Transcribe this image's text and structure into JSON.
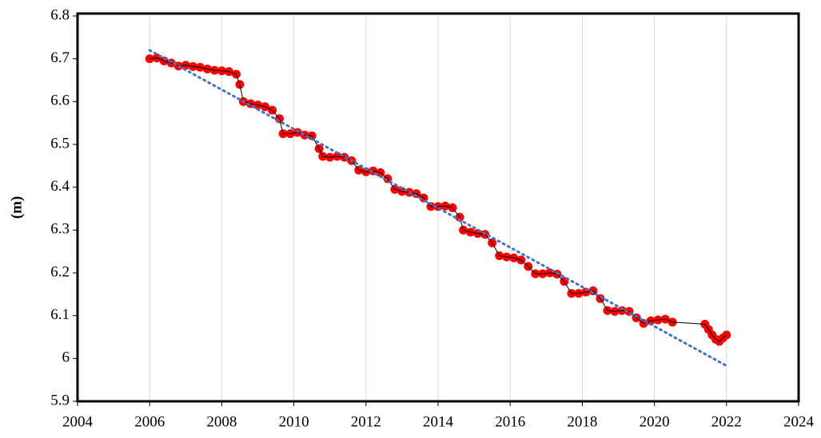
{
  "chart_data": {
    "type": "scatter",
    "ylabel": "(m)",
    "xlim": [
      2004,
      2024
    ],
    "xticks": [
      2004,
      2006,
      2008,
      2010,
      2012,
      2014,
      2016,
      2018,
      2020,
      2022,
      2024
    ],
    "ylim": [
      5.9,
      6.8
    ],
    "yticks": [
      5.9,
      6,
      6.1,
      6.2,
      6.3,
      6.4,
      6.5,
      6.6,
      6.7,
      6.8
    ],
    "grid": "x",
    "series": [
      {
        "color": "#ff0000",
        "line_color": "#000000",
        "style": "markers",
        "x": [
          2006.0,
          2006.2,
          2006.4,
          2006.6,
          2006.8,
          2007.0,
          2007.2,
          2007.4,
          2007.6,
          2007.8,
          2008.0,
          2008.2,
          2008.4,
          2008.5,
          2008.6,
          2008.8,
          2009.0,
          2009.2,
          2009.4,
          2009.6,
          2009.7,
          2009.9,
          2010.1,
          2010.3,
          2010.5,
          2010.7,
          2010.8,
          2011.0,
          2011.2,
          2011.4,
          2011.6,
          2011.8,
          2012.0,
          2012.2,
          2012.4,
          2012.6,
          2012.8,
          2013.0,
          2013.2,
          2013.4,
          2013.6,
          2013.8,
          2014.0,
          2014.2,
          2014.4,
          2014.6,
          2014.7,
          2014.9,
          2015.1,
          2015.3,
          2015.5,
          2015.7,
          2015.9,
          2016.1,
          2016.3,
          2016.5,
          2016.7,
          2016.9,
          2017.1,
          2017.3,
          2017.5,
          2017.7,
          2017.9,
          2018.1,
          2018.3,
          2018.5,
          2018.7,
          2018.9,
          2019.1,
          2019.3,
          2019.5,
          2019.7,
          2019.9,
          2020.1,
          2020.3,
          2020.5,
          2021.4,
          2021.5,
          2021.6,
          2021.7,
          2021.8,
          2021.9,
          2022.0
        ],
        "values": [
          6.7,
          6.702,
          6.695,
          6.69,
          6.683,
          6.685,
          6.682,
          6.68,
          6.676,
          6.673,
          6.672,
          6.67,
          6.664,
          6.64,
          6.6,
          6.595,
          6.592,
          6.588,
          6.58,
          6.56,
          6.525,
          6.525,
          6.528,
          6.522,
          6.52,
          6.49,
          6.472,
          6.47,
          6.472,
          6.47,
          6.462,
          6.44,
          6.436,
          6.438,
          6.434,
          6.42,
          6.395,
          6.39,
          6.388,
          6.385,
          6.375,
          6.355,
          6.355,
          6.356,
          6.352,
          6.33,
          6.3,
          6.295,
          6.292,
          6.29,
          6.27,
          6.24,
          6.237,
          6.235,
          6.23,
          6.215,
          6.198,
          6.198,
          6.2,
          6.197,
          6.18,
          6.152,
          6.152,
          6.155,
          6.158,
          6.14,
          6.112,
          6.11,
          6.112,
          6.11,
          6.095,
          6.082,
          6.088,
          6.09,
          6.092,
          6.085,
          6.08,
          6.068,
          6.055,
          6.045,
          6.04,
          6.048,
          6.055
        ]
      },
      {
        "color": "#4472c4",
        "style": "dotted",
        "x": [
          2006,
          2022
        ],
        "values": [
          6.72,
          5.983
        ]
      }
    ]
  }
}
